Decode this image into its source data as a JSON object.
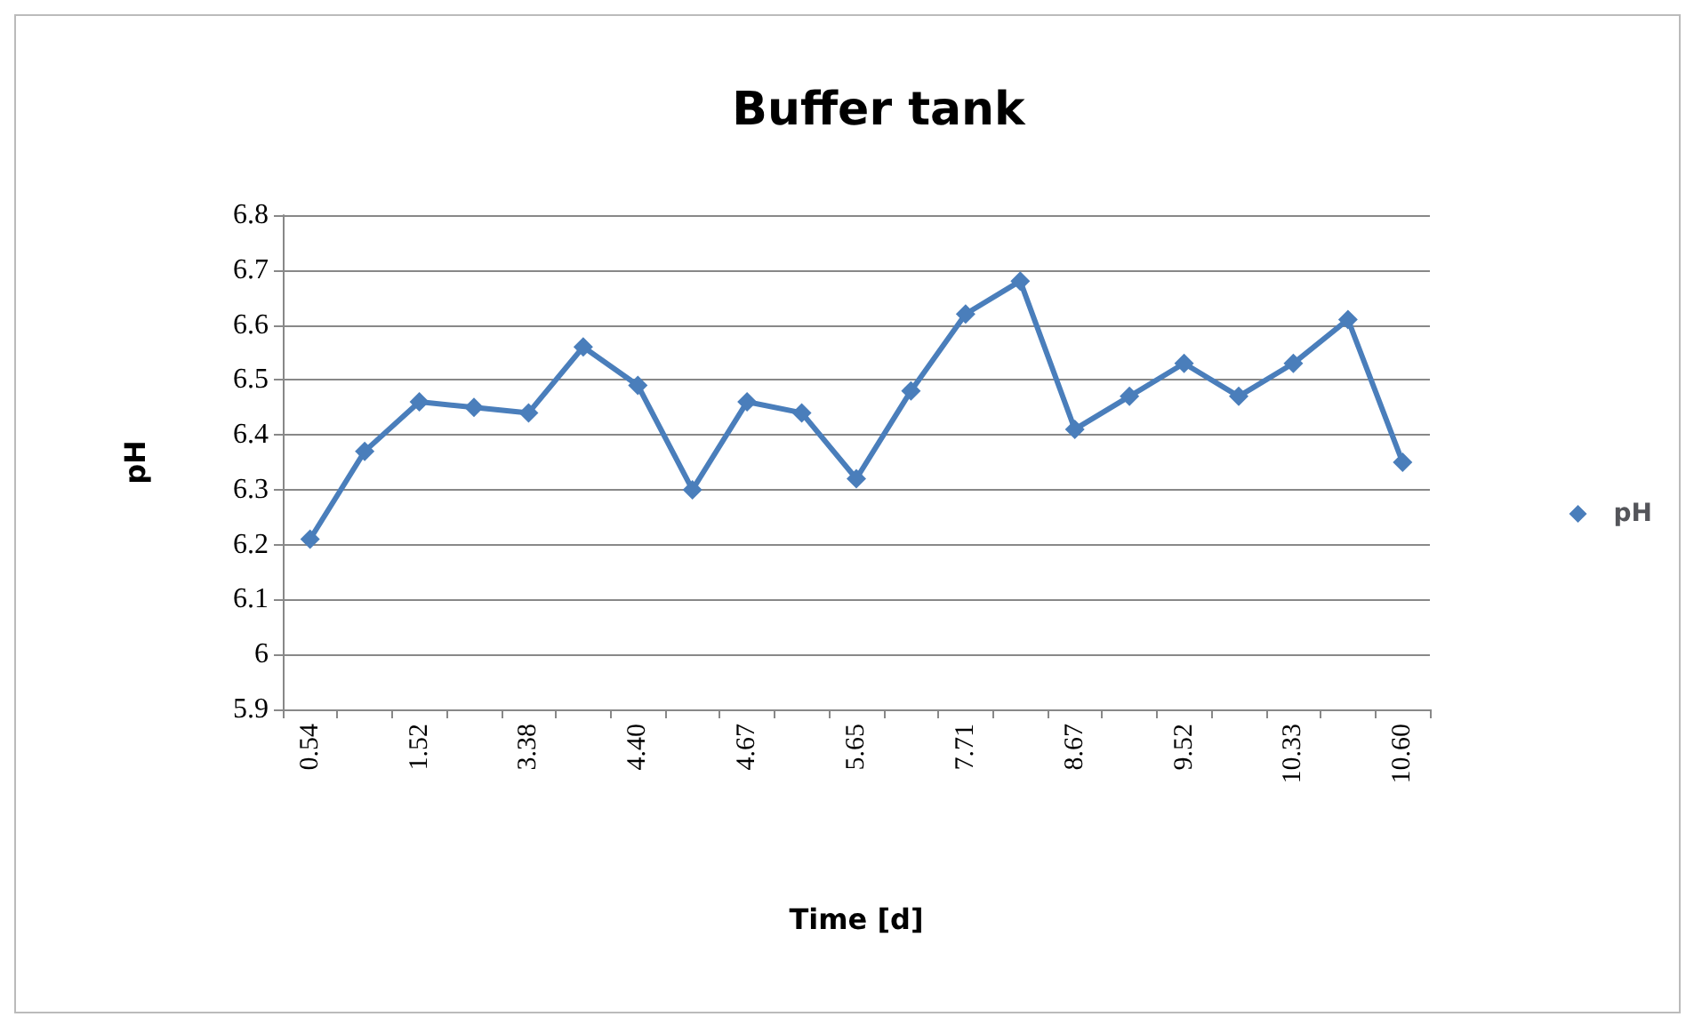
{
  "chart_data": {
    "type": "line",
    "title": "Buffer tank",
    "xlabel": "Time [d]",
    "ylabel": "pH",
    "categories": [
      "0.54",
      null,
      "1.52",
      null,
      "3.38",
      null,
      "4.40",
      null,
      "4.67",
      null,
      "5.65",
      null,
      "7.71",
      null,
      "8.67",
      null,
      "9.52",
      null,
      "10.33",
      null,
      "10.60"
    ],
    "series": [
      {
        "name": "pH",
        "color": "#4a7ebb",
        "values": [
          6.21,
          6.37,
          6.46,
          6.45,
          6.44,
          6.56,
          6.49,
          6.3,
          6.46,
          6.44,
          6.32,
          6.48,
          6.62,
          6.68,
          6.41,
          6.47,
          6.53,
          6.47,
          6.53,
          6.61,
          6.35
        ]
      }
    ],
    "ylim": [
      5.9,
      6.8
    ],
    "yticks": [
      5.9,
      6,
      6.1,
      6.2,
      6.3,
      6.4,
      6.5,
      6.6,
      6.7,
      6.8
    ],
    "grid": "y",
    "legend": "right",
    "marker": "diamond",
    "line_style": "solid"
  }
}
